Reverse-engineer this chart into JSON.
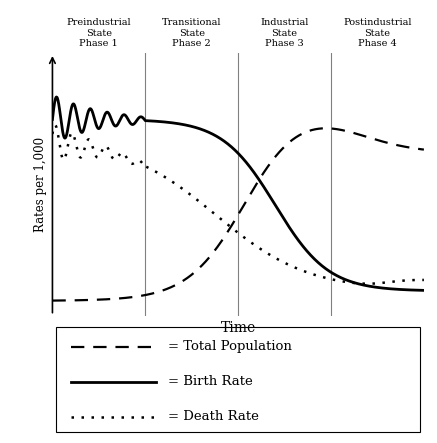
{
  "title": "",
  "xlabel": "Time",
  "ylabel": "Rates per 1,000",
  "phase_labels": [
    [
      "Preindustrial",
      "State",
      "Phase 1"
    ],
    [
      "Transitional",
      "State",
      "Phase 2"
    ],
    [
      "Industrial",
      "State",
      "Phase 3"
    ],
    [
      "Postindustrial",
      "State",
      "Phase 4"
    ]
  ],
  "phase_dividers": [
    0.25,
    0.5,
    0.75
  ],
  "phase_centers": [
    0.125,
    0.375,
    0.625,
    0.875
  ],
  "background_color": "#ffffff",
  "line_color": "#000000",
  "legend_items": [
    {
      "label": "= Total Population",
      "style": "dashed"
    },
    {
      "label": "= Birth Rate",
      "style": "solid"
    },
    {
      "label": "= Death Rate",
      "style": "dotted"
    }
  ]
}
